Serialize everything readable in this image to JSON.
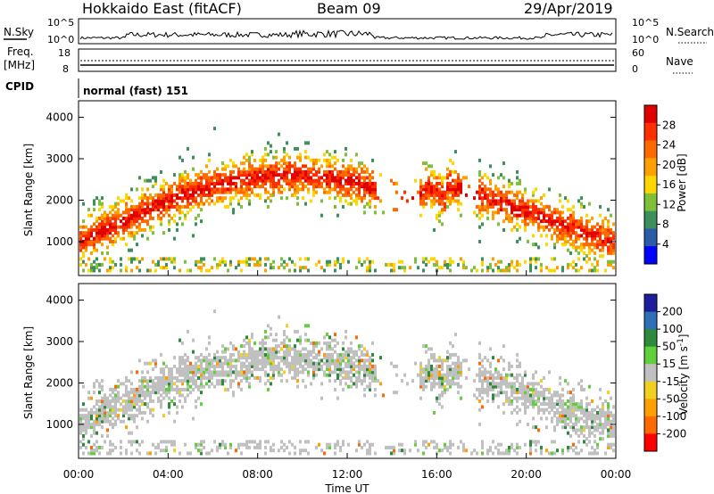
{
  "header": {
    "station": "Hokkaido East (fitACF)",
    "beam": "Beam 09",
    "date": "29/Apr/2019"
  },
  "side_labels": {
    "nsky": "N.Sky",
    "freq_line1": "Freq.",
    "freq_line2": "[MHz]",
    "cpid": "CPID",
    "nsearch": "N.Search",
    "nave": "Nave",
    "nsky_hi": "10^5",
    "nsky_lo": "10^0",
    "freq_hi": "18",
    "freq_lo": "8",
    "nave_hi": "60",
    "nave_lo": "0",
    "cpid_text": "normal (fast) 151"
  },
  "colors": {
    "power": [
      "#0000ff",
      "#2a5ca8",
      "#3d8f5c",
      "#7fbf3a",
      "#ffd700",
      "#ffa000",
      "#ff6a00",
      "#ff3000",
      "#e00000"
    ],
    "velocity": [
      "#1e1e9c",
      "#2e6fb8",
      "#2f8a3c",
      "#5fd03a",
      "#c0c0c0",
      "#f0d020",
      "#ffa000",
      "#ff6a00",
      "#ff0000"
    ]
  },
  "chart_data": [
    {
      "type": "heatmap",
      "title": "Power",
      "ylabel": "Slant Range [km]",
      "xlabel": "",
      "ylim": [
        180,
        4400
      ],
      "yticks": [
        "1000",
        "2000",
        "3000",
        "4000"
      ],
      "colorbar_label": "Power [dB]",
      "colorbar_ticks": [
        "4",
        "8",
        "12",
        "16",
        "20",
        "24",
        "28"
      ],
      "colorbar_range": [
        0,
        32
      ],
      "grid": false
    },
    {
      "type": "heatmap",
      "title": "Velocity",
      "ylabel": "Slant Range [km]",
      "xlabel": "Time UT",
      "ylim": [
        180,
        4400
      ],
      "yticks": [
        "1000",
        "2000",
        "3000",
        "4000"
      ],
      "xticks": [
        "00:00",
        "04:00",
        "08:00",
        "12:00",
        "16:00",
        "20:00",
        "00:00"
      ],
      "colorbar_label": "Velocity [m s-1]",
      "colorbar_ticks": [
        "-200",
        "-100",
        "-50",
        "-15",
        "15",
        "50",
        "100",
        "200"
      ],
      "grid": false
    }
  ]
}
